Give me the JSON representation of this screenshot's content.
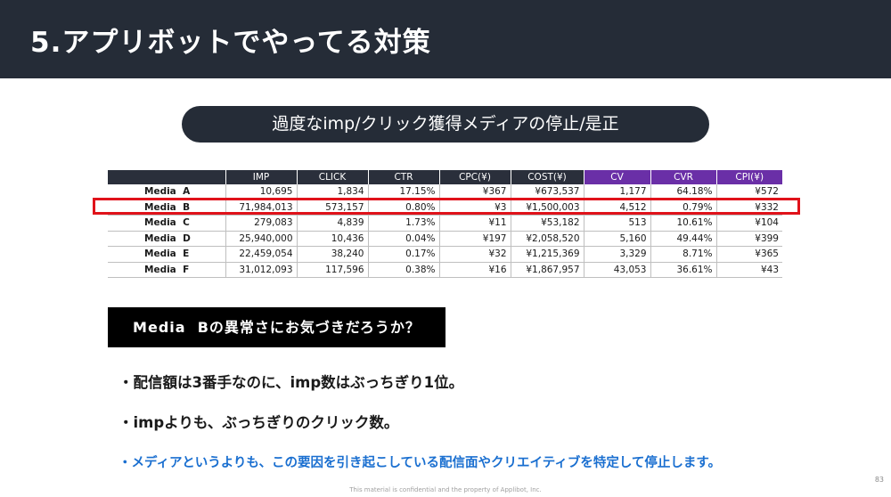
{
  "slide": {
    "title": "5.アプリボットでやってる対策",
    "subtitle": "過度なimp/クリック獲得メディアの停止/是正"
  },
  "table": {
    "headers": [
      "",
      "IMP",
      "CLICK",
      "CTR",
      "CPC(¥)",
      "COST(¥)",
      "CV",
      "CVR",
      "CPI(¥)"
    ],
    "rows": [
      [
        "Media  A",
        "10,695",
        "1,834",
        "17.15%",
        "¥367",
        "¥673,537",
        "1,177",
        "64.18%",
        "¥572"
      ],
      [
        "Media  B",
        "71,984,013",
        "573,157",
        "0.80%",
        "¥3",
        "¥1,500,003",
        "4,512",
        "0.79%",
        "¥332"
      ],
      [
        "Media  C",
        "279,083",
        "4,839",
        "1.73%",
        "¥11",
        "¥53,182",
        "513",
        "10.61%",
        "¥104"
      ],
      [
        "Media  D",
        "25,940,000",
        "10,436",
        "0.04%",
        "¥197",
        "¥2,058,520",
        "5,160",
        "49.44%",
        "¥399"
      ],
      [
        "Media  E",
        "22,459,054",
        "38,240",
        "0.17%",
        "¥32",
        "¥1,215,369",
        "3,329",
        "8.71%",
        "¥365"
      ],
      [
        "Media  F",
        "31,012,093",
        "117,596",
        "0.38%",
        "¥16",
        "¥1,867,957",
        "43,053",
        "36.61%",
        "¥43"
      ]
    ],
    "header_color": "#2a2f3b",
    "cv_header_color": "#6a2fa7",
    "highlight_color": "#e0121a"
  },
  "question": "Media  Bの異常さにお気づきだろうか？",
  "bullets": [
    "・配信額は3番手なのに、imp数はぶっちぎり1位。",
    "・impよりも、ぶっちぎりのクリック数。",
    "・メディアというよりも、この要因を引き起こしている配信面やクリエイティブを特定して停止します。"
  ],
  "footer": "This material is confidential and the property of Applibot, Inc.",
  "page_number": "83"
}
